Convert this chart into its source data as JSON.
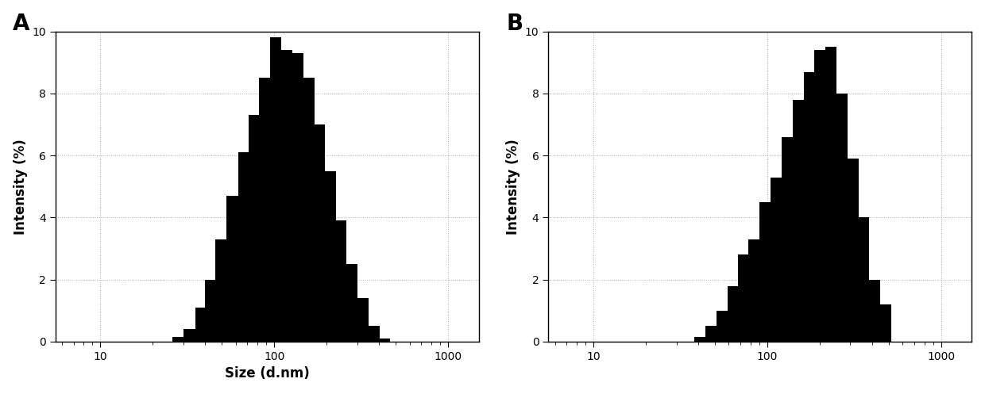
{
  "panel_A_label": "A",
  "panel_B_label": "B",
  "ylabel": "Intensity (%)",
  "xlabel": "Size (d.nm)",
  "xlim": [
    5.5,
    1500
  ],
  "ylim": [
    0,
    10
  ],
  "yticks": [
    0,
    2,
    4,
    6,
    8,
    10
  ],
  "xticks": [
    10,
    100,
    1000
  ],
  "xticklabels": [
    "10",
    "100",
    "1000"
  ],
  "bar_color": "#000000",
  "background_color": "#ffffff",
  "panel_A_bin_edges": [
    26,
    30,
    35,
    40,
    46,
    53,
    62,
    71,
    82,
    95,
    110,
    127,
    147,
    170,
    196,
    226,
    261,
    302,
    349,
    403,
    465
  ],
  "panel_A_values": [
    0.15,
    0.4,
    1.1,
    2.0,
    3.3,
    4.7,
    6.1,
    7.3,
    8.5,
    9.8,
    9.4,
    9.3,
    8.5,
    7.0,
    5.5,
    3.9,
    2.5,
    1.4,
    0.5,
    0.1
  ],
  "panel_B_bin_edges": [
    38,
    44,
    51,
    59,
    68,
    78,
    90,
    104,
    121,
    140,
    162,
    187,
    216,
    250,
    289,
    334,
    386,
    446,
    515
  ],
  "panel_B_values": [
    0.15,
    0.5,
    1.0,
    1.8,
    2.8,
    3.3,
    4.5,
    5.3,
    6.6,
    7.8,
    8.7,
    9.4,
    9.5,
    8.0,
    5.9,
    4.0,
    2.0,
    1.2
  ],
  "grid_linestyle": ":",
  "grid_color": "#aaaaaa",
  "grid_linewidth": 0.7,
  "label_fontsize": 12,
  "tick_fontsize": 10,
  "panel_label_fontsize": 20
}
